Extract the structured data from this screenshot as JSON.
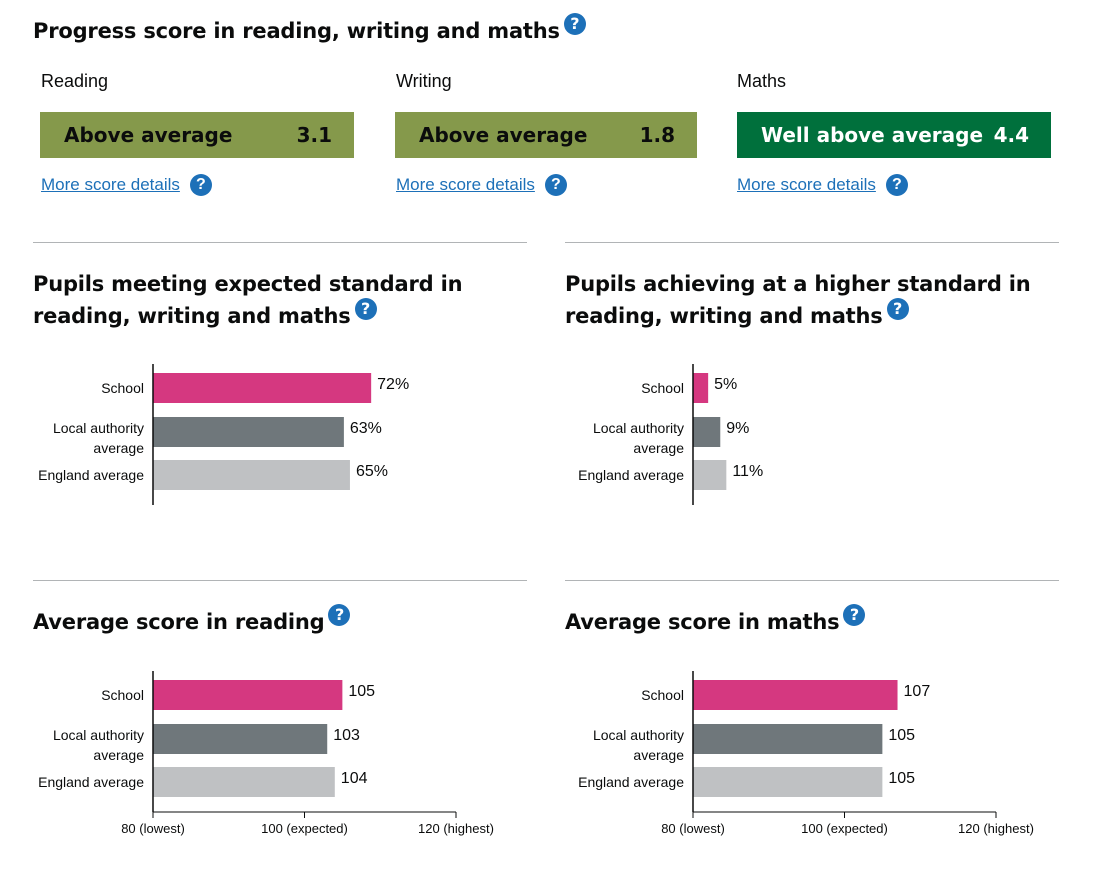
{
  "progress": {
    "title": "Progress score in reading, writing and maths",
    "help_glyph": "?",
    "subjects": [
      {
        "name": "Reading",
        "band": "Above average",
        "score": "3.1",
        "color": "#85994b",
        "link": "More score details"
      },
      {
        "name": "Writing",
        "band": "Above average",
        "score": "1.8",
        "color": "#85994b",
        "link": "More score details"
      },
      {
        "name": "Maths",
        "band": "Well above average",
        "score": "4.4",
        "color": "#00703c",
        "link": "More score details"
      }
    ]
  },
  "sections": {
    "expected_title": "Pupils meeting expected standard in reading, writing and maths",
    "higher_title": "Pupils achieving at a higher standard in reading, writing and maths",
    "reading_title": "Average score in reading",
    "maths_title": "Average score in maths"
  },
  "colors": {
    "school": "#d53880",
    "local": "#6f777b",
    "england": "#bfc1c3",
    "help": "#1d70b8"
  },
  "chart_data": [
    {
      "id": "expected",
      "type": "bar",
      "orientation": "horizontal",
      "title": "Pupils meeting expected standard in reading, writing and maths",
      "categories": [
        "School",
        "Local authority average",
        "England average"
      ],
      "values": [
        72,
        63,
        65
      ],
      "value_labels": [
        "72%",
        "63%",
        "65%"
      ],
      "xlim": [
        0,
        100
      ]
    },
    {
      "id": "higher",
      "type": "bar",
      "orientation": "horizontal",
      "title": "Pupils achieving at a higher standard in reading, writing and maths",
      "categories": [
        "School",
        "Local authority average",
        "England average"
      ],
      "values": [
        5,
        9,
        11
      ],
      "value_labels": [
        "5%",
        "9%",
        "11%"
      ],
      "xlim": [
        0,
        100
      ]
    },
    {
      "id": "reading",
      "type": "bar",
      "orientation": "horizontal",
      "title": "Average score in reading",
      "categories": [
        "School",
        "Local authority average",
        "England average"
      ],
      "values": [
        105,
        103,
        104
      ],
      "value_labels": [
        "105",
        "103",
        "104"
      ],
      "xlim": [
        80,
        120
      ],
      "xticks": [
        80,
        100,
        120
      ],
      "xtick_labels": [
        "80 (lowest)",
        "100 (expected)",
        "120 (highest)"
      ]
    },
    {
      "id": "maths",
      "type": "bar",
      "orientation": "horizontal",
      "title": "Average score in maths",
      "categories": [
        "School",
        "Local authority average",
        "England average"
      ],
      "values": [
        107,
        105,
        105
      ],
      "value_labels": [
        "107",
        "105",
        "105"
      ],
      "xlim": [
        80,
        120
      ],
      "xticks": [
        80,
        100,
        120
      ],
      "xtick_labels": [
        "80 (lowest)",
        "100 (expected)",
        "120 (highest)"
      ]
    }
  ]
}
